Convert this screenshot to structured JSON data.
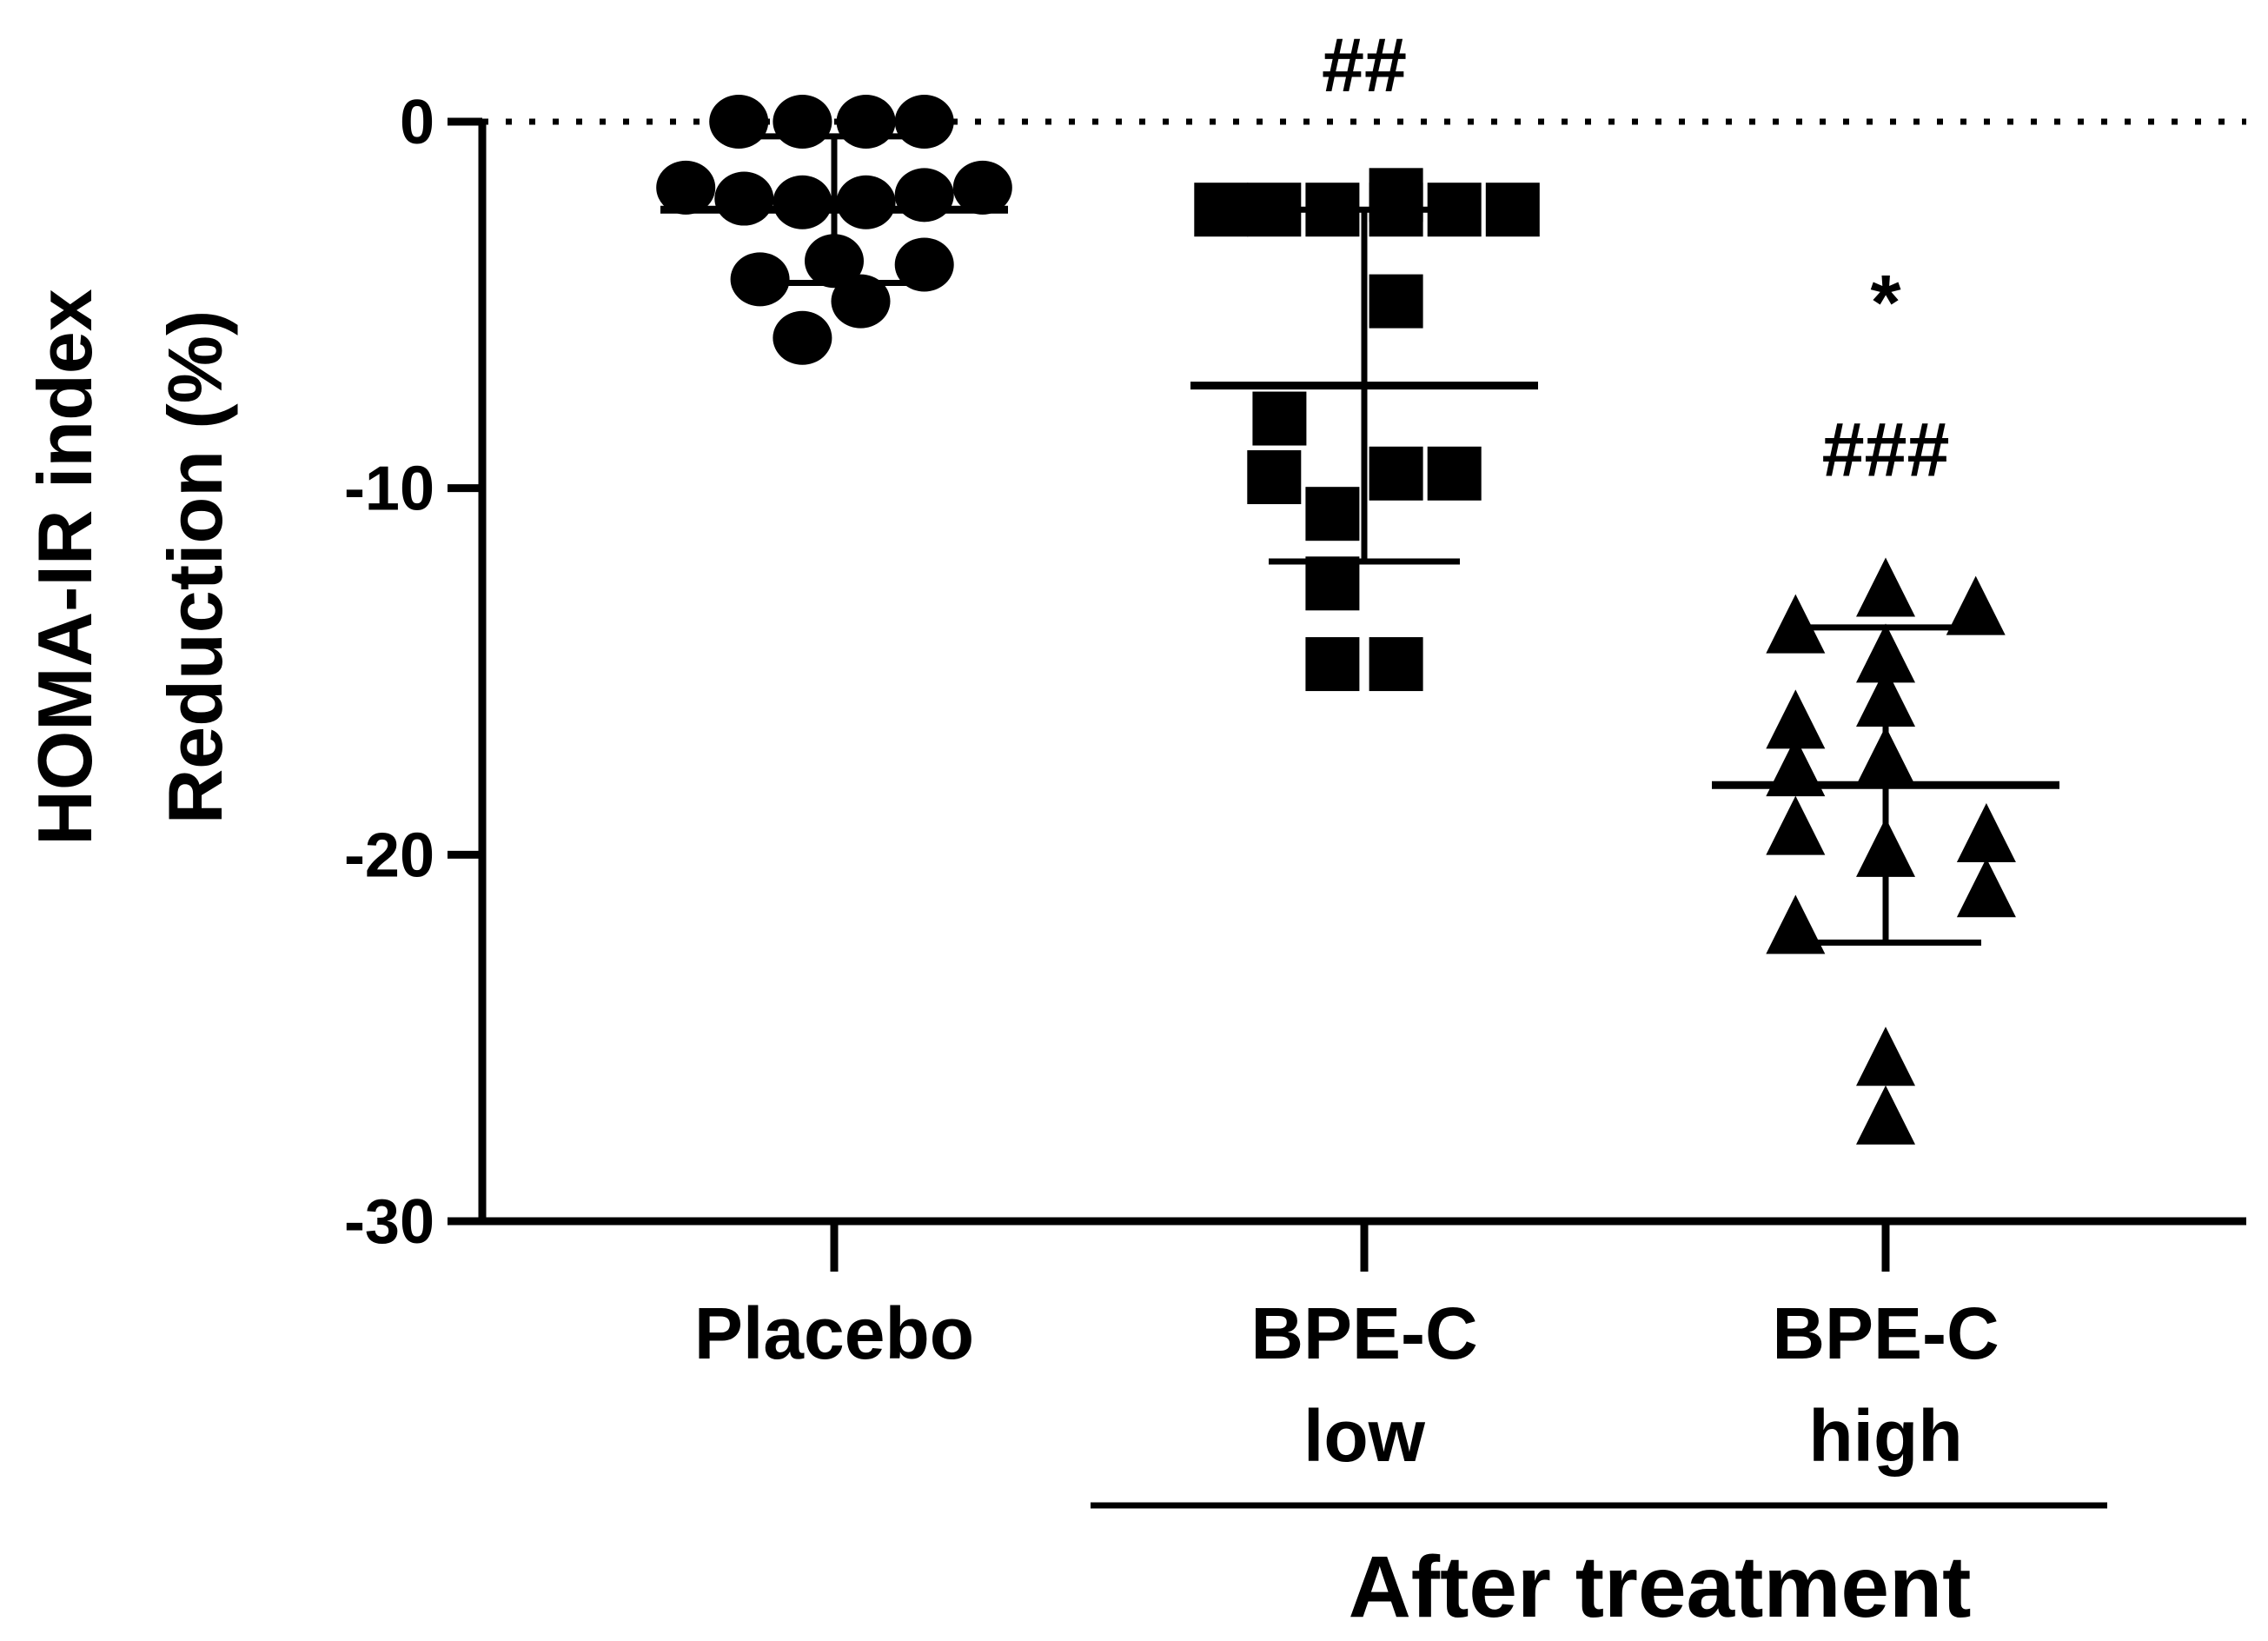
{
  "chart_data": {
    "type": "scatter",
    "ylabel_lines": [
      "HOMA-IR index",
      "Reduction (%)"
    ],
    "ylim": [
      -30,
      0
    ],
    "yticks": [
      0,
      -10,
      -20,
      -30
    ],
    "reference_line": 0,
    "categories": [
      {
        "lines": [
          "Placebo"
        ]
      },
      {
        "lines": [
          "BPE-C",
          "low"
        ]
      },
      {
        "lines": [
          "BPE-C",
          "high"
        ]
      }
    ],
    "group_label": "After treatment",
    "series": [
      {
        "marker": "circle",
        "mean": -2.4,
        "sd": 2.0,
        "points": [
          {
            "dx": -0.18,
            "y": 0
          },
          {
            "dx": -0.06,
            "y": 0
          },
          {
            "dx": 0.06,
            "y": 0
          },
          {
            "dx": 0.17,
            "y": 0
          },
          {
            "dx": -0.28,
            "y": -1.8
          },
          {
            "dx": -0.17,
            "y": -2.1
          },
          {
            "dx": -0.06,
            "y": -2.2
          },
          {
            "dx": 0.06,
            "y": -2.2
          },
          {
            "dx": 0.17,
            "y": -2.0
          },
          {
            "dx": 0.28,
            "y": -1.8
          },
          {
            "dx": -0.14,
            "y": -4.3
          },
          {
            "dx": 0.0,
            "y": -3.8
          },
          {
            "dx": 0.17,
            "y": -3.9
          },
          {
            "dx": 0.05,
            "y": -4.9
          },
          {
            "dx": -0.06,
            "y": -5.9
          }
        ]
      },
      {
        "marker": "square",
        "mean": -7.2,
        "sd": 4.8,
        "points": [
          {
            "dx": -0.27,
            "y": -2.4
          },
          {
            "dx": -0.17,
            "y": -2.4
          },
          {
            "dx": -0.06,
            "y": -2.4
          },
          {
            "dx": 0.06,
            "y": -2.4
          },
          {
            "dx": 0.06,
            "y": -2.0
          },
          {
            "dx": 0.17,
            "y": -2.4
          },
          {
            "dx": 0.28,
            "y": -2.4
          },
          {
            "dx": 0.06,
            "y": -4.9
          },
          {
            "dx": -0.16,
            "y": -8.1
          },
          {
            "dx": -0.17,
            "y": -9.7
          },
          {
            "dx": 0.06,
            "y": -9.6
          },
          {
            "dx": 0.17,
            "y": -9.6
          },
          {
            "dx": -0.06,
            "y": -10.7
          },
          {
            "dx": -0.06,
            "y": -12.6
          },
          {
            "dx": -0.06,
            "y": -14.8
          },
          {
            "dx": 0.06,
            "y": -14.8
          }
        ]
      },
      {
        "marker": "triangle",
        "mean": -18.1,
        "sd": 4.3,
        "points": [
          {
            "dx": -0.17,
            "y": -13.7
          },
          {
            "dx": 0.0,
            "y": -12.7
          },
          {
            "dx": 0.17,
            "y": -13.2
          },
          {
            "dx": 0.0,
            "y": -14.5
          },
          {
            "dx": -0.17,
            "y": -16.3
          },
          {
            "dx": 0.0,
            "y": -15.7
          },
          {
            "dx": -0.17,
            "y": -17.6
          },
          {
            "dx": 0.0,
            "y": -17.3
          },
          {
            "dx": -0.17,
            "y": -19.2
          },
          {
            "dx": 0.0,
            "y": -19.8
          },
          {
            "dx": 0.19,
            "y": -19.4
          },
          {
            "dx": 0.19,
            "y": -20.9
          },
          {
            "dx": -0.17,
            "y": -21.9
          },
          {
            "dx": 0.0,
            "y": -25.5
          },
          {
            "dx": 0.0,
            "y": -27.1
          }
        ]
      }
    ],
    "annotations": [
      {
        "category": 1,
        "y": 1.5,
        "text": "##"
      },
      {
        "category": 2,
        "y": -5.0,
        "text": "*"
      },
      {
        "category": 2,
        "y": -9.0,
        "text": "###"
      }
    ]
  }
}
